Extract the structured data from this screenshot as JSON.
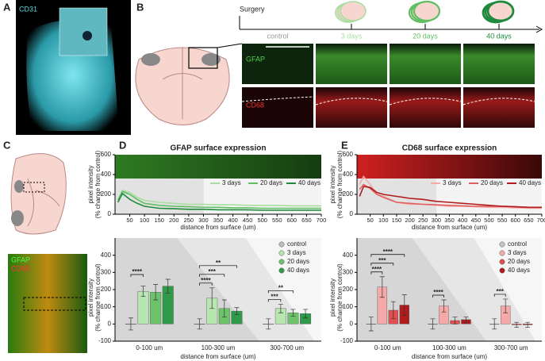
{
  "panels": {
    "A": {
      "label": "A",
      "stain": "CD31"
    },
    "B": {
      "label": "B",
      "surgery": "Surgery",
      "timepoints": [
        "control",
        "3 days",
        "20 days",
        "40 days"
      ],
      "timepoint_colors": [
        "#9a9a9a",
        "#a8dea0",
        "#5fbf62",
        "#1f8a3e"
      ],
      "rows": [
        "GFAP",
        "CD68"
      ]
    },
    "C": {
      "label": "C",
      "stains": [
        "GFAP",
        "CD68"
      ]
    },
    "D": {
      "label": "D"
    },
    "E": {
      "label": "E"
    }
  },
  "chart_data": [
    {
      "type": "line",
      "title": "GFAP surface expression",
      "x": [
        10,
        25,
        50,
        75,
        100,
        150,
        200,
        250,
        300,
        350,
        400,
        450,
        500,
        550,
        600,
        650,
        700
      ],
      "xlim": [
        0,
        700
      ],
      "xticks": [
        50,
        100,
        150,
        200,
        250,
        300,
        350,
        400,
        450,
        500,
        550,
        600,
        650,
        700
      ],
      "ylim": [
        0,
        600
      ],
      "yticks": [
        0,
        200,
        400,
        600
      ],
      "y_label": [
        "pixel intensity",
        "(% change from control)"
      ],
      "x_label": "distance from surface (um)",
      "legend": "upper right",
      "series": [
        {
          "name": "3 days",
          "color": "#a8dea0",
          "values": [
            150,
            240,
            220,
            170,
            140,
            120,
            110,
            100,
            100,
            95,
            95,
            90,
            90,
            90,
            85,
            85,
            85
          ]
        },
        {
          "name": "20 days",
          "color": "#5fbf62",
          "values": [
            140,
            230,
            200,
            150,
            110,
            90,
            80,
            75,
            70,
            70,
            65,
            65,
            60,
            60,
            60,
            60,
            60
          ]
        },
        {
          "name": "40 days",
          "color": "#1f8a3e",
          "values": [
            120,
            210,
            150,
            110,
            80,
            60,
            55,
            50,
            50,
            45,
            45,
            45,
            40,
            40,
            40,
            40,
            40
          ]
        }
      ]
    },
    {
      "type": "bar",
      "categories": [
        "0-100 um",
        "100-300 um",
        "300-700 um"
      ],
      "ylim": [
        -100,
        500
      ],
      "yticks": [
        -100,
        0,
        100,
        200,
        300,
        400
      ],
      "y_label": [
        "pixel intensity",
        "(% change from control)"
      ],
      "x_label": "distance from surface (um)",
      "legend": "upper right",
      "series": [
        {
          "name": "control",
          "color": "#bdbdbd",
          "values": [
            0,
            0,
            0
          ],
          "errors": [
            35,
            30,
            30
          ]
        },
        {
          "name": "3 days",
          "color": "#b8e6b0",
          "values": [
            190,
            150,
            90
          ],
          "errors": [
            30,
            60,
            25
          ]
        },
        {
          "name": "20 days",
          "color": "#6dc36a",
          "values": [
            185,
            90,
            65
          ],
          "errors": [
            45,
            50,
            20
          ]
        },
        {
          "name": "40 days",
          "color": "#2e9a4a",
          "values": [
            220,
            75,
            60
          ],
          "errors": [
            40,
            20,
            25
          ]
        }
      ],
      "annotations": [
        [
          "****"
        ],
        [
          "**",
          "***",
          "****"
        ],
        [
          "**",
          "***"
        ]
      ]
    },
    {
      "type": "line",
      "title": "CD68 surface expression",
      "x": [
        10,
        25,
        50,
        75,
        100,
        150,
        200,
        250,
        300,
        350,
        400,
        450,
        500,
        550,
        600,
        650,
        700
      ],
      "xlim": [
        0,
        700
      ],
      "xticks": [
        50,
        100,
        150,
        200,
        250,
        300,
        350,
        400,
        450,
        500,
        550,
        600,
        650,
        700
      ],
      "ylim": [
        0,
        600
      ],
      "yticks": [
        0,
        200,
        400,
        600
      ],
      "y_label": [
        "pixel intensity",
        "(% change from control)"
      ],
      "x_label": "distance from surface (um)",
      "legend": "upper right",
      "series": [
        {
          "name": "3 days",
          "color": "#f5a9a9",
          "values": [
            300,
            380,
            300,
            200,
            180,
            120,
            100,
            100,
            90,
            80,
            80,
            75,
            70,
            70,
            65,
            60,
            60
          ]
        },
        {
          "name": "20 days",
          "color": "#e06060",
          "values": [
            250,
            300,
            260,
            200,
            170,
            120,
            110,
            100,
            95,
            90,
            85,
            80,
            80,
            80,
            75,
            70,
            70
          ]
        },
        {
          "name": "40 days",
          "color": "#b01c1c",
          "values": [
            180,
            280,
            270,
            220,
            200,
            180,
            160,
            150,
            130,
            120,
            110,
            100,
            90,
            80,
            75,
            70,
            70
          ]
        }
      ]
    },
    {
      "type": "bar",
      "categories": [
        "0-100 um",
        "100-300 um",
        "300-700 um"
      ],
      "ylim": [
        -100,
        500
      ],
      "yticks": [
        -100,
        0,
        100,
        200,
        300,
        400
      ],
      "y_label": [
        "pixel intensity",
        "(% change from control)"
      ],
      "x_label": "distance from surface (um)",
      "legend": "upper right",
      "series": [
        {
          "name": "control",
          "color": "#c4c4c4",
          "values": [
            0,
            0,
            0
          ],
          "errors": [
            40,
            30,
            30
          ]
        },
        {
          "name": "3 days",
          "color": "#f5a9a9",
          "values": [
            215,
            105,
            105
          ],
          "errors": [
            60,
            35,
            40
          ]
        },
        {
          "name": "20 days",
          "color": "#e05050",
          "values": [
            80,
            20,
            -5
          ],
          "errors": [
            50,
            20,
            15
          ]
        },
        {
          "name": "40 days",
          "color": "#b01c1c",
          "values": [
            110,
            25,
            -5
          ],
          "errors": [
            60,
            15,
            15
          ]
        }
      ],
      "annotations": [
        [
          "****",
          "***",
          "****"
        ],
        [
          "****"
        ],
        [
          "***"
        ]
      ]
    }
  ]
}
